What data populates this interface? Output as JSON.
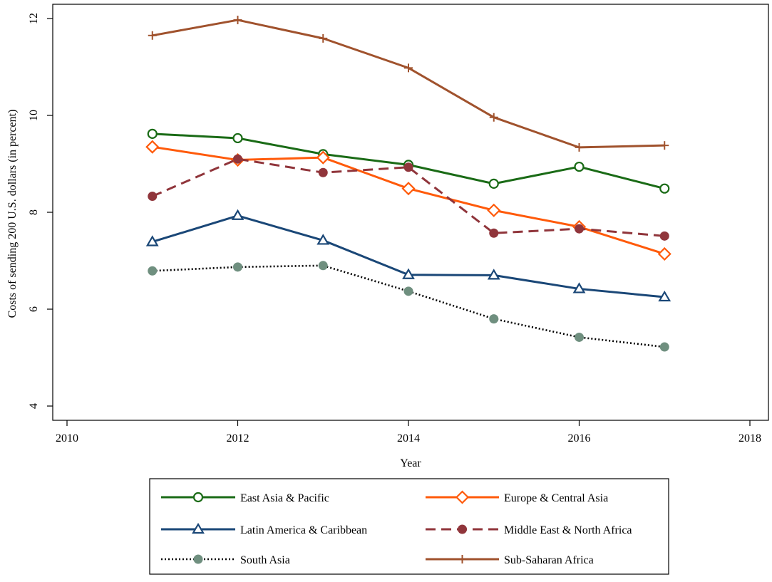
{
  "chart_data": {
    "type": "line",
    "title": "",
    "xlabel": "Year",
    "ylabel": "Costs of sending 200 U.S. dollars (in percent)",
    "xlim": [
      2010,
      2018
    ],
    "ylim": [
      4,
      12
    ],
    "x_ticks": [
      "2010",
      "2012",
      "2014",
      "2016",
      "2018"
    ],
    "y_ticks": [
      "4",
      "6",
      "8",
      "10",
      "12"
    ],
    "grid": false,
    "legend_position": "bottom",
    "x": [
      2011,
      2012,
      2013,
      2014,
      2015,
      2016,
      2017
    ],
    "series": [
      {
        "name": "East Asia & Pacific",
        "color": "#1a6b16",
        "marker": "circle-open",
        "dash": "solid",
        "values": [
          9.62,
          9.53,
          9.2,
          8.98,
          8.59,
          8.94,
          8.49
        ]
      },
      {
        "name": "Europe & Central Asia",
        "color": "#ff5a0a",
        "marker": "diamond-open",
        "dash": "solid",
        "values": [
          9.35,
          9.08,
          9.13,
          8.49,
          8.04,
          7.7,
          7.14
        ]
      },
      {
        "name": "Latin America & Caribbean",
        "color": "#1a4777",
        "marker": "triangle-open",
        "dash": "solid",
        "values": [
          7.39,
          7.93,
          7.42,
          6.71,
          6.7,
          6.42,
          6.25
        ]
      },
      {
        "name": "Middle East & North Africa",
        "color": "#90353b",
        "marker": "circle-filled",
        "dash": "dashed",
        "values": [
          8.33,
          9.1,
          8.82,
          8.93,
          7.57,
          7.66,
          7.51
        ]
      },
      {
        "name": "South Asia",
        "color": "#000000",
        "markerColor": "#6f8f7f",
        "marker": "circle-filled",
        "dash": "dotted",
        "values": [
          6.79,
          6.87,
          6.9,
          6.37,
          5.8,
          5.42,
          5.22
        ]
      },
      {
        "name": "Sub-Saharan Africa",
        "color": "#a0522d",
        "marker": "plus",
        "dash": "solid",
        "values": [
          11.65,
          11.97,
          11.59,
          10.98,
          9.96,
          9.34,
          9.38
        ]
      }
    ]
  }
}
